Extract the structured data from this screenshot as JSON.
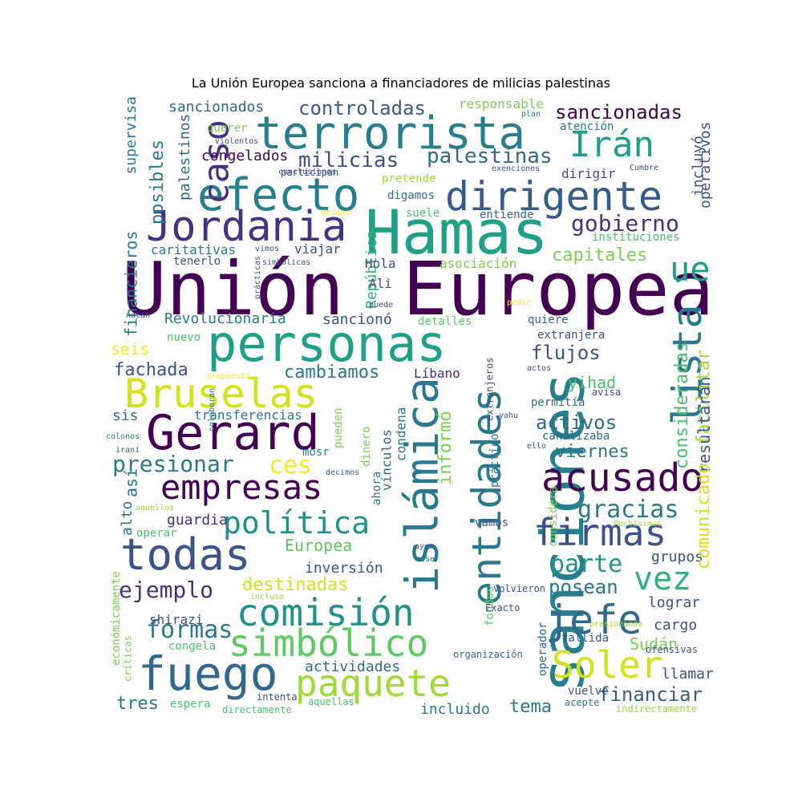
{
  "title": "La Unión Europea sanciona a financiadores de milicias palestinas",
  "palette": [
    "#440154",
    "#46327e",
    "#365c8d",
    "#277f8e",
    "#1fa187",
    "#4ac16d",
    "#a0da39",
    "#fde725"
  ],
  "words": [
    {
      "text": "Unión",
      "color": "#440154"
    },
    {
      "text": "Europea",
      "color": "#440154"
    },
    {
      "text": "sanciones",
      "color": "#277f8e"
    },
    {
      "text": "Hamas",
      "color": "#1fa187"
    },
    {
      "text": "personas",
      "color": "#1fa187"
    },
    {
      "text": "terrorista",
      "color": "#277f8e"
    },
    {
      "text": "efecto",
      "color": "#277f8e"
    },
    {
      "text": "dirigente",
      "color": "#365c8d"
    },
    {
      "text": "Jordania",
      "color": "#46327e"
    },
    {
      "text": "Gerard",
      "color": "#440154"
    },
    {
      "text": "Bruselas",
      "color": "#d2e21b"
    },
    {
      "text": "islámica",
      "color": "#2a788e"
    },
    {
      "text": "entidades",
      "color": "#2a788e"
    },
    {
      "text": "empresas",
      "color": "#440154"
    },
    {
      "text": "acusado",
      "color": "#440154"
    },
    {
      "text": "todas",
      "color": "#3b528b"
    },
    {
      "text": "firmas",
      "color": "#3b528b"
    },
    {
      "text": "fuego",
      "color": "#31688e"
    },
    {
      "text": "simbólico",
      "color": "#5ec962"
    },
    {
      "text": "paquete",
      "color": "#a0da39"
    },
    {
      "text": "Soler",
      "color": "#d2e21b"
    },
    {
      "text": "jefe",
      "color": "#31688e"
    },
    {
      "text": "vez",
      "color": "#2db27d"
    },
    {
      "text": "comisión",
      "color": "#21918c"
    },
    {
      "text": "lista",
      "color": "#2a788e"
    },
    {
      "text": "Irán",
      "color": "#1f9e89"
    },
    {
      "text": "caso",
      "color": "#46327e"
    },
    {
      "text": "política",
      "color": "#21918c"
    },
    {
      "text": "presionar",
      "color": "#2a788e"
    },
    {
      "text": "ue",
      "color": "#1fa187"
    },
    {
      "text": "gobierno",
      "color": "#46327e"
    },
    {
      "text": "milicias",
      "color": "#3b528b"
    },
    {
      "text": "palestinas",
      "color": "#31688e"
    },
    {
      "text": "controladas",
      "color": "#365c8d"
    },
    {
      "text": "sancionadas",
      "color": "#440154"
    },
    {
      "text": "gracias",
      "color": "#2a788e"
    },
    {
      "text": "parte",
      "color": "#21918c"
    },
    {
      "text": "ejemplo",
      "color": "#46327e"
    },
    {
      "text": "formas",
      "color": "#2a788e"
    },
    {
      "text": "capitales",
      "color": "#7ad151"
    },
    {
      "text": "ces",
      "color": "#fde725"
    },
    {
      "text": "activos",
      "color": "#31688e"
    },
    {
      "text": "financiar",
      "color": "#365c8d"
    },
    {
      "text": "posean",
      "color": "#2a788e"
    },
    {
      "text": "flujos",
      "color": "#3b528b"
    },
    {
      "text": "cambiamos",
      "color": "#2a788e"
    },
    {
      "text": "fachada",
      "color": "#3b528b"
    },
    {
      "text": "seis",
      "color": "#fde725"
    },
    {
      "text": "Revolucionaria",
      "color": "#2a788e"
    },
    {
      "text": "sancionó",
      "color": "#3b528b"
    },
    {
      "text": "tres",
      "color": "#2a788e"
    },
    {
      "text": "tema",
      "color": "#2a788e"
    },
    {
      "text": "incluido",
      "color": "#2a788e"
    },
    {
      "text": "destinadas",
      "color": "#d2e21b"
    },
    {
      "text": "inversión",
      "color": "#3b528b"
    },
    {
      "text": "Europea",
      "color": "#5ec962"
    },
    {
      "text": "viernes",
      "color": "#2a788e"
    },
    {
      "text": "yihad",
      "color": "#4ac16d"
    },
    {
      "text": "shirazi",
      "color": "#3b528b"
    },
    {
      "text": "congelados",
      "color": "#440154"
    },
    {
      "text": "sancionados",
      "color": "#31688e"
    },
    {
      "text": "actividades",
      "color": "#31688e"
    },
    {
      "text": "Sudán",
      "color": "#7ad151"
    },
    {
      "text": "cargo",
      "color": "#3b528b"
    },
    {
      "text": "grupos",
      "color": "#3b528b"
    },
    {
      "text": "lograr",
      "color": "#3b528b"
    },
    {
      "text": "llamar",
      "color": "#3b528b"
    },
    {
      "text": "guardia",
      "color": "#46327e"
    },
    {
      "text": "responsable",
      "color": "#7ad151"
    },
    {
      "text": "posibles",
      "color": "#2a788e"
    },
    {
      "text": "palestinos",
      "color": "#31688e"
    },
    {
      "text": "financieros",
      "color": "#2a788e"
    },
    {
      "text": "supervisa",
      "color": "#2a788e"
    },
    {
      "text": "consideradas",
      "color": "#4ac16d"
    },
    {
      "text": "facilitar",
      "color": "#a0da39"
    },
    {
      "text": "resultarán",
      "color": "#3b528b"
    },
    {
      "text": "comunicado",
      "color": "#d2e21b"
    },
    {
      "text": "informó",
      "color": "#7ad151"
    },
    {
      "text": "operativos",
      "color": "#3b528b"
    },
    {
      "text": "incluyó",
      "color": "#3b528b"
    },
    {
      "text": "dirigir",
      "color": "#3b528b"
    },
    {
      "text": "entiende",
      "color": "#31688e"
    },
    {
      "text": "suele",
      "color": "#4ac16d"
    },
    {
      "text": "digamos",
      "color": "#31688e"
    },
    {
      "text": "pretende",
      "color": "#a0da39"
    },
    {
      "text": "quiere",
      "color": "#31688e"
    },
    {
      "text": "detalles",
      "color": "#5ec962"
    },
    {
      "text": "extranjera",
      "color": "#3b528b"
    },
    {
      "text": "permitía",
      "color": "#31688e"
    },
    {
      "text": "canalizaba",
      "color": "#31688e"
    },
    {
      "text": "transferencias",
      "color": "#2a788e"
    },
    {
      "text": "Líbano",
      "color": "#46327e"
    },
    {
      "text": "República",
      "color": "#2db27d"
    },
    {
      "text": "asociación",
      "color": "#7ad151"
    },
    {
      "text": "caritativas",
      "color": "#2a788e"
    },
    {
      "text": "tenerlo",
      "color": "#3b528b"
    },
    {
      "text": "viajar",
      "color": "#3b528b"
    },
    {
      "text": "Hola",
      "color": "#3b528b"
    },
    {
      "text": "Ali",
      "color": "#3b528b"
    },
    {
      "text": "nuevo",
      "color": "#4ac16d"
    },
    {
      "text": "sis",
      "color": "#2a788e"
    },
    {
      "text": "mosr",
      "color": "#2a788e"
    },
    {
      "text": "así",
      "color": "#2a788e"
    },
    {
      "text": "alto",
      "color": "#2a788e"
    },
    {
      "text": "operar",
      "color": "#4ac16d"
    },
    {
      "text": "congela",
      "color": "#4ac16d"
    },
    {
      "text": "espera",
      "color": "#4ac16d"
    },
    {
      "text": "vamos",
      "color": "#3b528b"
    },
    {
      "text": "fallida",
      "color": "#3b528b"
    },
    {
      "text": "vuelve",
      "color": "#3b528b"
    },
    {
      "text": "operador",
      "color": "#31688e"
    },
    {
      "text": "fondos",
      "color": "#5ec962"
    },
    {
      "text": "vínculos",
      "color": "#31688e"
    },
    {
      "text": "condena",
      "color": "#2a788e"
    },
    {
      "text": "pueden",
      "color": "#7ad151"
    },
    {
      "text": "dinero",
      "color": "#7ad151"
    },
    {
      "text": "ahora",
      "color": "#2a788e"
    },
    {
      "text": "práctico",
      "color": "#2a788e"
    },
    {
      "text": "considera",
      "color": "#7ad151"
    },
    {
      "text": "extranjeros",
      "color": "#3b528b"
    },
    {
      "text": "querer",
      "color": "#7ad151"
    },
    {
      "text": "instituciones",
      "color": "#4ac16d"
    },
    {
      "text": "atención",
      "color": "#2a788e"
    },
    {
      "text": "económicamente",
      "color": "#7ad151"
    },
    {
      "text": "críticas",
      "color": "#7ad151"
    },
    {
      "text": "intenta",
      "color": "#3b528b"
    },
    {
      "text": "directamente",
      "color": "#4ac16d"
    },
    {
      "text": "aquellas",
      "color": "#4ac16d"
    },
    {
      "text": "acepte",
      "color": "#2a788e"
    },
    {
      "text": "indirectamente",
      "color": "#a0da39"
    },
    {
      "text": "organización",
      "color": "#31688e"
    },
    {
      "text": "ofensivas",
      "color": "#3b528b"
    },
    {
      "text": "Exacto",
      "color": "#3b528b"
    },
    {
      "text": "volvieron",
      "color": "#3b528b"
    },
    {
      "text": "Muchísimas",
      "color": "#a0da39"
    },
    {
      "text": "presionando",
      "color": "#a0da39"
    },
    {
      "text": "ello",
      "color": "#3b528b"
    },
    {
      "text": "yahu",
      "color": "#3b528b"
    },
    {
      "text": "avisa",
      "color": "#3b528b"
    },
    {
      "text": "actos",
      "color": "#3b528b"
    },
    {
      "text": "pedir",
      "color": "#fde725"
    },
    {
      "text": "propuesto",
      "color": "#fde725"
    },
    {
      "text": "colaboran",
      "color": "#2a788e"
    },
    {
      "text": "natan",
      "color": "#3b528b"
    },
    {
      "text": "prácticas",
      "color": "#3b528b"
    },
    {
      "text": "simbólicas",
      "color": "#3b528b"
    },
    {
      "text": "vimos",
      "color": "#3b528b"
    },
    {
      "text": "Unidos",
      "color": "#fde725"
    },
    {
      "text": "participan",
      "color": "#3b528b"
    },
    {
      "text": "conclusiones",
      "color": "#3b528b"
    },
    {
      "text": "violentos",
      "color": "#3b528b"
    },
    {
      "text": "plan",
      "color": "#2a788e"
    },
    {
      "text": "exenciones",
      "color": "#3b528b"
    },
    {
      "text": "Cumbre",
      "color": "#3b528b"
    },
    {
      "text": "puede",
      "color": "#3b528b"
    },
    {
      "text": "decimos",
      "color": "#3b528b"
    },
    {
      "text": "ayer",
      "color": "#3b528b"
    },
    {
      "text": "cese",
      "color": "#2a788e"
    },
    {
      "text": "colonos",
      "color": "#2a788e"
    },
    {
      "text": "iraní",
      "color": "#3b528b"
    },
    {
      "text": "aquellos",
      "color": "#a0da39"
    },
    {
      "text": "incluso",
      "color": "#a0da39"
    }
  ]
}
